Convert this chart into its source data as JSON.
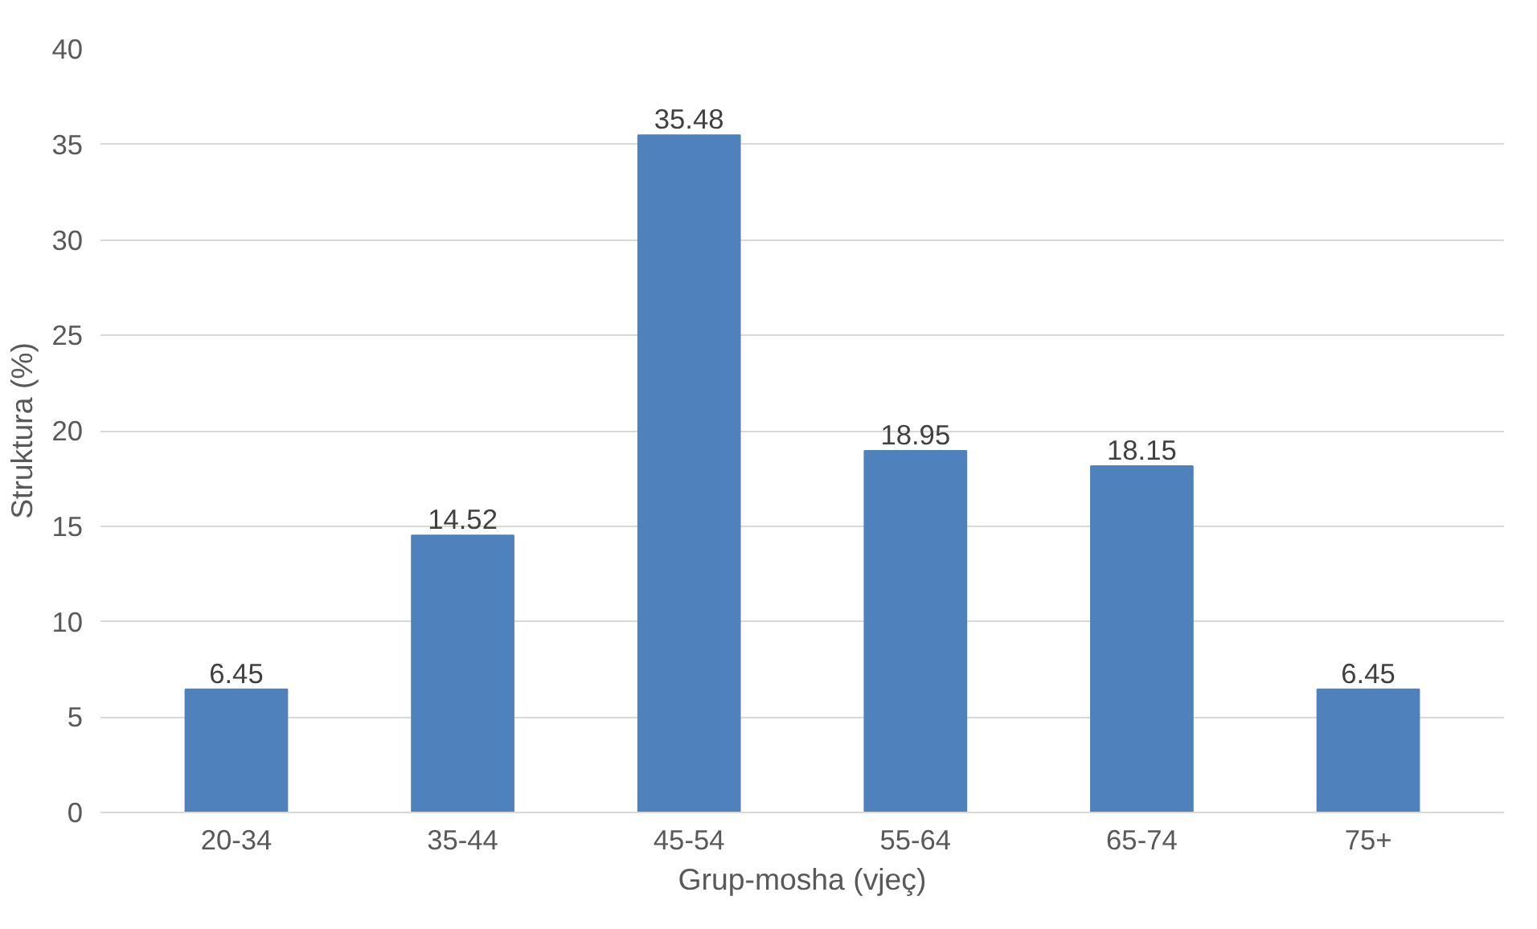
{
  "chart_data": {
    "type": "bar",
    "xlabel": "Grup-mosha (vjeç)",
    "ylabel": "Struktura (%)",
    "categories": [
      "20-34",
      "35-44",
      "45-54",
      "55-64",
      "65-74",
      "75+"
    ],
    "values": [
      6.45,
      14.52,
      35.48,
      18.95,
      18.15,
      6.45
    ],
    "color": "#4f81bd",
    "ylim": [
      0,
      40
    ],
    "yticks": [
      0,
      5,
      10,
      15,
      20,
      25,
      30,
      35,
      40
    ],
    "grid": "y",
    "data_labels": true
  }
}
